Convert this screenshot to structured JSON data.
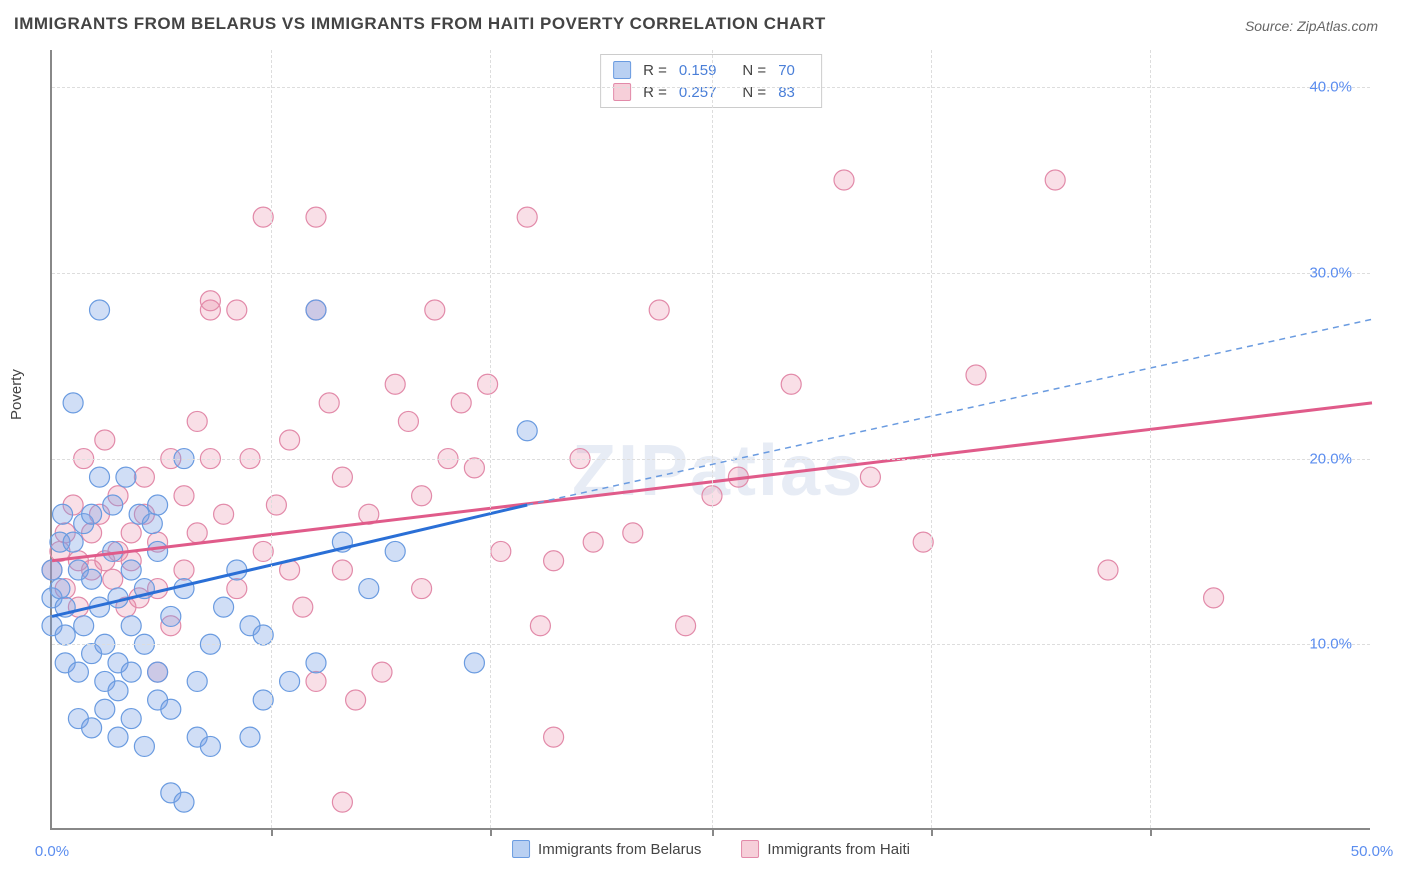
{
  "title": "IMMIGRANTS FROM BELARUS VS IMMIGRANTS FROM HAITI POVERTY CORRELATION CHART",
  "source_label": "Source: ",
  "source_name": "ZipAtlas.com",
  "ylabel": "Poverty",
  "watermark": "ZIPatlas",
  "chart": {
    "type": "scatter",
    "xlim": [
      0,
      50
    ],
    "ylim": [
      0,
      42
    ],
    "x_ticks": [
      0,
      50
    ],
    "x_tick_labels": [
      "0.0%",
      "50.0%"
    ],
    "x_gridlines": [
      8.3,
      16.6,
      25,
      33.3,
      41.6
    ],
    "y_ticks": [
      10,
      20,
      30,
      40
    ],
    "y_tick_labels": [
      "10.0%",
      "20.0%",
      "30.0%",
      "40.0%"
    ],
    "background_color": "#ffffff",
    "grid_color": "#dddddd",
    "axis_color": "#888888",
    "tick_label_color": "#5b8def",
    "series": [
      {
        "key": "belarus",
        "label": "Immigrants from Belarus",
        "color_fill": "rgba(120,160,230,0.35)",
        "color_stroke": "#6a9be0",
        "swatch_fill": "#b9d0f2",
        "swatch_stroke": "#6a9be0",
        "marker_radius": 10,
        "r_label": "R  =",
        "r_value": "0.159",
        "n_label": "N  =",
        "n_value": "70",
        "regression": {
          "solid": {
            "x1": 0,
            "y1": 11.5,
            "x2": 18,
            "y2": 17.5,
            "color": "#2a6fd6",
            "width": 3
          },
          "dashed": {
            "x1": 18,
            "y1": 17.5,
            "x2": 50,
            "y2": 27.5,
            "color": "#6a9be0",
            "width": 1.5,
            "dash": "6,5"
          }
        },
        "points": [
          [
            0,
            11
          ],
          [
            0,
            14
          ],
          [
            0,
            12.5
          ],
          [
            0.3,
            15.5
          ],
          [
            0.3,
            13
          ],
          [
            0.4,
            17
          ],
          [
            0.5,
            9
          ],
          [
            0.5,
            10.5
          ],
          [
            0.5,
            12
          ],
          [
            0.8,
            23
          ],
          [
            0.8,
            15.5
          ],
          [
            1,
            14
          ],
          [
            1,
            8.5
          ],
          [
            1,
            6
          ],
          [
            1.2,
            16.5
          ],
          [
            1.2,
            11
          ],
          [
            1.5,
            17
          ],
          [
            1.5,
            13.5
          ],
          [
            1.5,
            9.5
          ],
          [
            1.5,
            5.5
          ],
          [
            1.8,
            28
          ],
          [
            1.8,
            19
          ],
          [
            1.8,
            12
          ],
          [
            2,
            8
          ],
          [
            2,
            6.5
          ],
          [
            2,
            10
          ],
          [
            2.3,
            17.5
          ],
          [
            2.3,
            15
          ],
          [
            2.5,
            5
          ],
          [
            2.5,
            7.5
          ],
          [
            2.5,
            9
          ],
          [
            2.5,
            12.5
          ],
          [
            2.8,
            19
          ],
          [
            3,
            14
          ],
          [
            3,
            8.5
          ],
          [
            3,
            6
          ],
          [
            3,
            11
          ],
          [
            3.3,
            17
          ],
          [
            3.5,
            13
          ],
          [
            3.5,
            10
          ],
          [
            3.8,
            16.5
          ],
          [
            4,
            7
          ],
          [
            4,
            8.5
          ],
          [
            4,
            15
          ],
          [
            4,
            17.5
          ],
          [
            4.5,
            11.5
          ],
          [
            4.5,
            6.5
          ],
          [
            4.5,
            2
          ],
          [
            5,
            13
          ],
          [
            5,
            20
          ],
          [
            5.5,
            5
          ],
          [
            5.5,
            8
          ],
          [
            6,
            4.5
          ],
          [
            6,
            10
          ],
          [
            6.5,
            12
          ],
          [
            7,
            14
          ],
          [
            7.5,
            11
          ],
          [
            7.5,
            5
          ],
          [
            8,
            10.5
          ],
          [
            8,
            7
          ],
          [
            9,
            8
          ],
          [
            10,
            9
          ],
          [
            10,
            28
          ],
          [
            11,
            15.5
          ],
          [
            12,
            13
          ],
          [
            13,
            15
          ],
          [
            18,
            21.5
          ],
          [
            16,
            9
          ],
          [
            5,
            1.5
          ],
          [
            3.5,
            4.5
          ]
        ]
      },
      {
        "key": "haiti",
        "label": "Immigrants from Haiti",
        "color_fill": "rgba(235,140,170,0.28)",
        "color_stroke": "#e28aa9",
        "swatch_fill": "#f6cfd9",
        "swatch_stroke": "#e28aa9",
        "marker_radius": 10,
        "r_label": "R  =",
        "r_value": "0.257",
        "n_label": "N  =",
        "n_value": "83",
        "regression": {
          "solid": {
            "x1": 0,
            "y1": 14.5,
            "x2": 50,
            "y2": 23,
            "color": "#e05b8a",
            "width": 3
          }
        },
        "points": [
          [
            0,
            14
          ],
          [
            0.3,
            15
          ],
          [
            0.5,
            13
          ],
          [
            0.5,
            16
          ],
          [
            0.8,
            17.5
          ],
          [
            1,
            14.5
          ],
          [
            1,
            12
          ],
          [
            1.2,
            20
          ],
          [
            1.5,
            16
          ],
          [
            1.5,
            14
          ],
          [
            1.8,
            17
          ],
          [
            2,
            14.5
          ],
          [
            2,
            21
          ],
          [
            2.3,
            13.5
          ],
          [
            2.5,
            15
          ],
          [
            2.5,
            18
          ],
          [
            2.8,
            12
          ],
          [
            3,
            16
          ],
          [
            3,
            14.5
          ],
          [
            3.3,
            12.5
          ],
          [
            3.5,
            19
          ],
          [
            3.5,
            17
          ],
          [
            4,
            13
          ],
          [
            4,
            15.5
          ],
          [
            4.5,
            20
          ],
          [
            4.5,
            11
          ],
          [
            5,
            14
          ],
          [
            5,
            18
          ],
          [
            5.5,
            16
          ],
          [
            5.5,
            22
          ],
          [
            6,
            28
          ],
          [
            6,
            20
          ],
          [
            6.5,
            17
          ],
          [
            7,
            13
          ],
          [
            7,
            28
          ],
          [
            7.5,
            20
          ],
          [
            8,
            33
          ],
          [
            8,
            15
          ],
          [
            8.5,
            17.5
          ],
          [
            9,
            21
          ],
          [
            9,
            14
          ],
          [
            9.5,
            12
          ],
          [
            10,
            33
          ],
          [
            10,
            28
          ],
          [
            10,
            8
          ],
          [
            10.5,
            23
          ],
          [
            11,
            19
          ],
          [
            11,
            14
          ],
          [
            11.5,
            7
          ],
          [
            12,
            17
          ],
          [
            12.5,
            8.5
          ],
          [
            13,
            24
          ],
          [
            13.5,
            22
          ],
          [
            14,
            18
          ],
          [
            14,
            13
          ],
          [
            14.5,
            28
          ],
          [
            15,
            20
          ],
          [
            15.5,
            23
          ],
          [
            16,
            19.5
          ],
          [
            16.5,
            24
          ],
          [
            17,
            15
          ],
          [
            18,
            33
          ],
          [
            18.5,
            11
          ],
          [
            19,
            14.5
          ],
          [
            19,
            5
          ],
          [
            20,
            20
          ],
          [
            20.5,
            15.5
          ],
          [
            22,
            16
          ],
          [
            23,
            28
          ],
          [
            24,
            11
          ],
          [
            25,
            18
          ],
          [
            26,
            19
          ],
          [
            28,
            24
          ],
          [
            30,
            35
          ],
          [
            31,
            19
          ],
          [
            33,
            15.5
          ],
          [
            35,
            24.5
          ],
          [
            38,
            35
          ],
          [
            40,
            14
          ],
          [
            44,
            12.5
          ],
          [
            11,
            1.5
          ],
          [
            6,
            28.5
          ],
          [
            4,
            8.5
          ]
        ]
      }
    ]
  }
}
